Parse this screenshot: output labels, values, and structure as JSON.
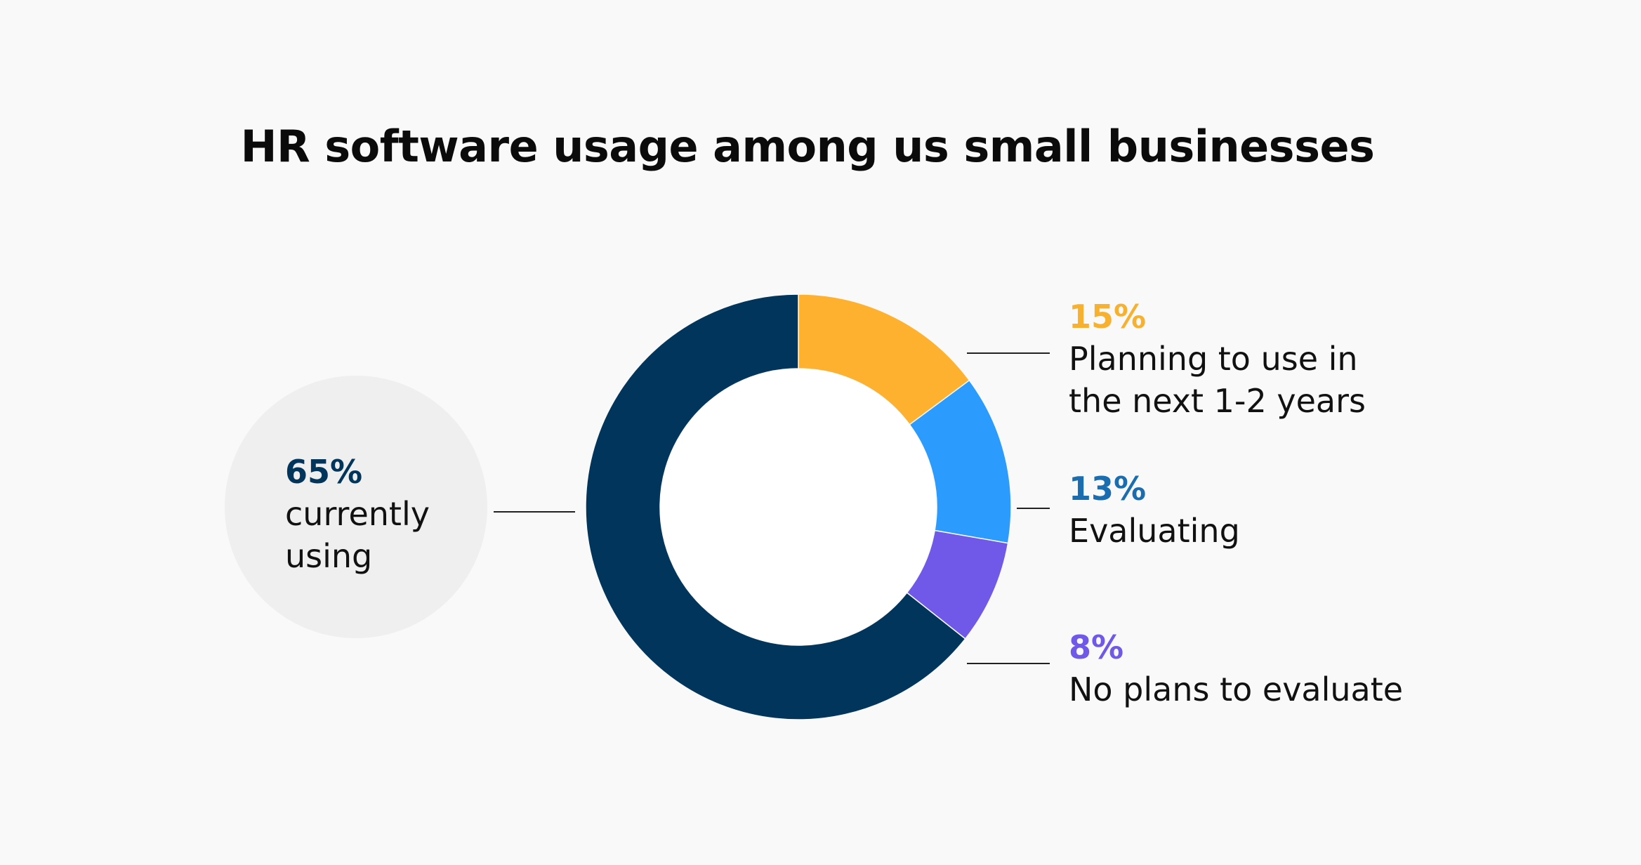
{
  "chart_data": {
    "type": "pie",
    "title": "HR software usage among us small businesses",
    "categories": [
      "currently using",
      "Planning to use in the next 1-2 years",
      "Evaluating",
      "No plans to evaluate"
    ],
    "values": [
      65,
      15,
      13,
      8
    ],
    "value_labels": [
      "65%",
      "15%",
      "13%",
      "8%"
    ],
    "label_lines": [
      "currently\nusing",
      "Planning to use in\nthe next 1-2 years",
      "Evaluating",
      "No plans to evaluate"
    ],
    "colors": [
      "#01355c",
      "#fdb12e",
      "#2b9bfe",
      "#7059e8"
    ],
    "label_colors": [
      "#01355c",
      "#f8b12e",
      "#1a6eb0",
      "#7059e8"
    ],
    "donut": true,
    "legend": "none"
  }
}
